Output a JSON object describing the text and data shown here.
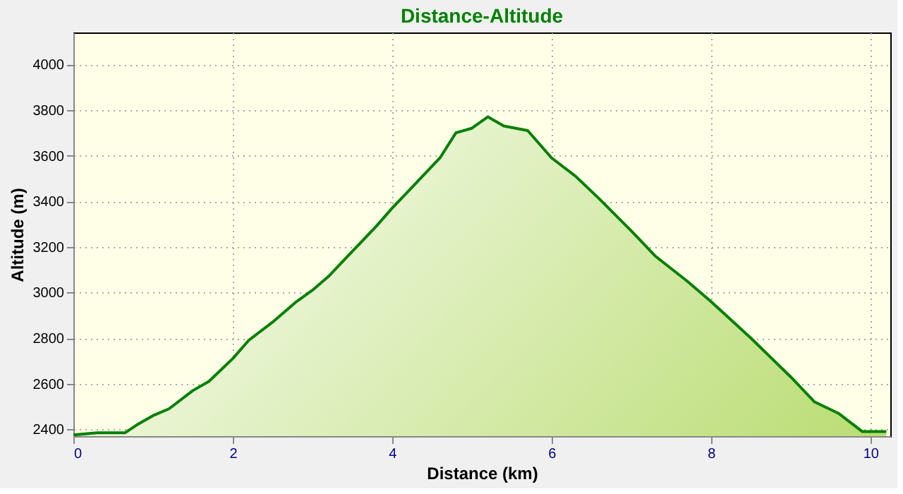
{
  "chart_data": {
    "type": "area",
    "title": "Distance-Altitude",
    "xlabel": "Distance (km)",
    "ylabel": "Altitude (m)",
    "x": [
      0,
      0.3,
      0.65,
      0.8,
      1.0,
      1.2,
      1.5,
      1.7,
      2.0,
      2.2,
      2.5,
      2.8,
      3.0,
      3.2,
      3.5,
      3.8,
      4.0,
      4.3,
      4.6,
      4.8,
      5.0,
      5.2,
      5.4,
      5.7,
      6.0,
      6.3,
      6.6,
      7.0,
      7.3,
      7.7,
      8.0,
      8.5,
      9.0,
      9.3,
      9.6,
      9.9,
      10.2
    ],
    "series": [
      {
        "color": "#008000",
        "values": [
          2375,
          2385,
          2385,
          2420,
          2460,
          2490,
          2570,
          2610,
          2710,
          2790,
          2870,
          2960,
          3010,
          3070,
          3180,
          3290,
          3370,
          3480,
          3590,
          3700,
          3720,
          3770,
          3730,
          3710,
          3590,
          3510,
          3410,
          3270,
          3160,
          3050,
          2960,
          2800,
          2630,
          2520,
          2470,
          2390,
          2390
        ]
      }
    ],
    "xlim": [
      0,
      10.25
    ],
    "ylim": [
      2370,
      4140
    ],
    "xticks": [
      0,
      2,
      4,
      6,
      8,
      10
    ],
    "yticks": [
      2400,
      2600,
      2800,
      3000,
      3200,
      3400,
      3600,
      3800,
      4000
    ],
    "grid": true
  }
}
